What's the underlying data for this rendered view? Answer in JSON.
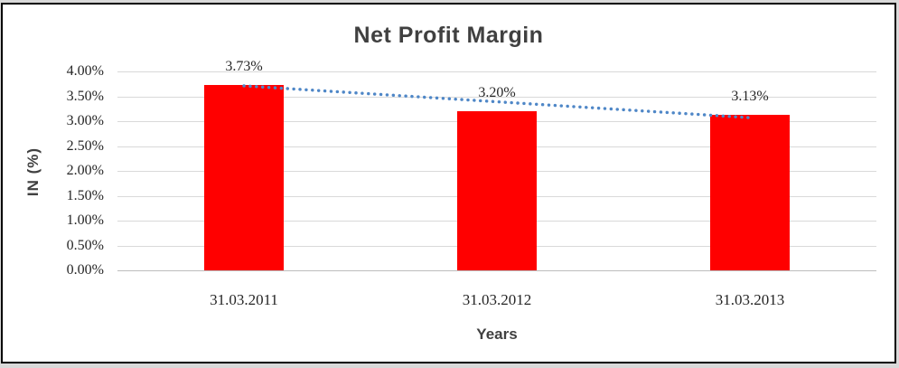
{
  "chart_data": {
    "type": "bar",
    "title": "Net Profit Margin",
    "xlabel": "Years",
    "ylabel": "IN (%)",
    "categories": [
      "31.03.2011",
      "31.03.2012",
      "31.03.2013"
    ],
    "values": [
      3.73,
      3.2,
      3.13
    ],
    "data_labels": [
      "3.73%",
      "3.20%",
      "3.13%"
    ],
    "yticks": [
      "4.00%",
      "3.50%",
      "3.00%",
      "2.50%",
      "2.00%",
      "1.50%",
      "1.00%",
      "0.50%",
      "0.00%"
    ],
    "ylim": [
      0,
      4
    ],
    "ytick_step": 0.5,
    "grid": true,
    "legend": "none",
    "colors": {
      "bar": "#FF0000",
      "trendline": "#4F87C7",
      "gridline": "#D9D9D9",
      "title_text": "#404040",
      "tick_text": "#262626"
    },
    "trendline": {
      "type": "linear",
      "style": "dotted",
      "from_pct": 3.71,
      "to_pct": 3.07
    }
  }
}
